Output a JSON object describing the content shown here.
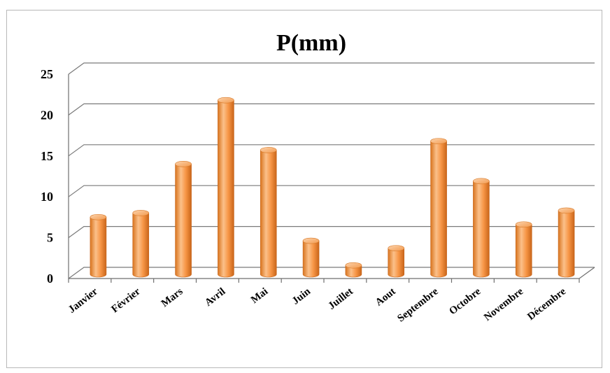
{
  "chart_data": {
    "type": "bar",
    "title": "P(mm)",
    "xlabel": "",
    "ylabel": "",
    "categories": [
      "Janvier",
      "Février",
      "Mars",
      "Avril",
      "Mai",
      "Juin",
      "Juillet",
      "Aout",
      "Septembre",
      "Octobre",
      "Novembre",
      "Décembre"
    ],
    "values": [
      7.0,
      7.5,
      13.5,
      21.3,
      15.2,
      4.1,
      1.1,
      3.2,
      16.3,
      11.4,
      6.1,
      7.8
    ],
    "ylim": [
      0,
      25
    ],
    "yticks": [
      "0",
      "5",
      "10",
      "15",
      "20",
      "25"
    ],
    "grid": true,
    "legend": "none",
    "colors": {
      "bar_fill": "#F79646",
      "bar_light": "#FBC08A",
      "bar_dark": "#D8741E",
      "grid": "#7a7a7a"
    }
  }
}
